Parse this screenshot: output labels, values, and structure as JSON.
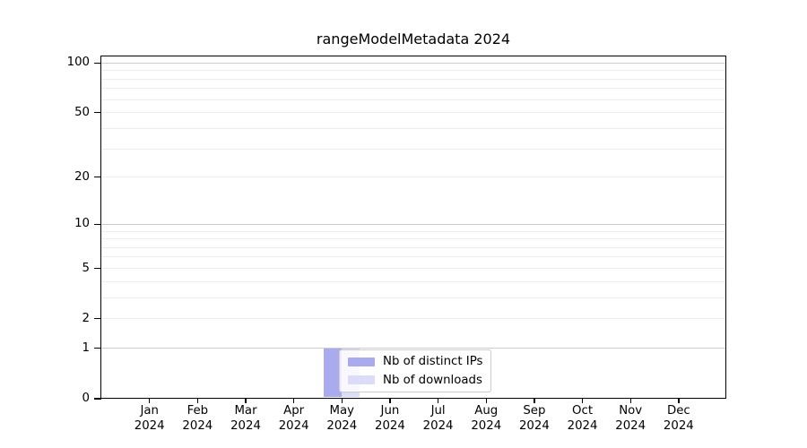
{
  "chart_data": {
    "type": "bar",
    "title": "rangeModelMetadata 2024",
    "x": {
      "months": [
        "Jan",
        "Feb",
        "Mar",
        "Apr",
        "May",
        "Jun",
        "Jul",
        "Aug",
        "Sep",
        "Oct",
        "Nov",
        "Dec"
      ],
      "year": "2024"
    },
    "series": [
      {
        "name": "Nb of distinct IPs",
        "color": "#aaaaee",
        "values": [
          0,
          0,
          0,
          0,
          1,
          0,
          0,
          0,
          0,
          0,
          0,
          0
        ]
      },
      {
        "name": "Nb of downloads",
        "color": "#dcdcf8",
        "values": [
          0,
          0,
          0,
          0,
          1,
          0,
          0,
          0,
          0,
          0,
          0,
          0
        ]
      }
    ],
    "y_axis": {
      "scale": "log1p",
      "tick_values": [
        0,
        1,
        2,
        5,
        10,
        20,
        50,
        100
      ],
      "ylim": [
        0,
        110
      ]
    },
    "grid": {
      "major_values": [
        1,
        10,
        100
      ],
      "minor_values": [
        2,
        3,
        4,
        5,
        6,
        7,
        8,
        9,
        20,
        30,
        40,
        50,
        60,
        70,
        80,
        90
      ],
      "major_color": "#cccccc",
      "minor_color": "#ededed"
    },
    "legend": {
      "position": "lower-center-left",
      "entries": [
        "Nb of distinct IPs",
        "Nb of downloads"
      ]
    }
  }
}
